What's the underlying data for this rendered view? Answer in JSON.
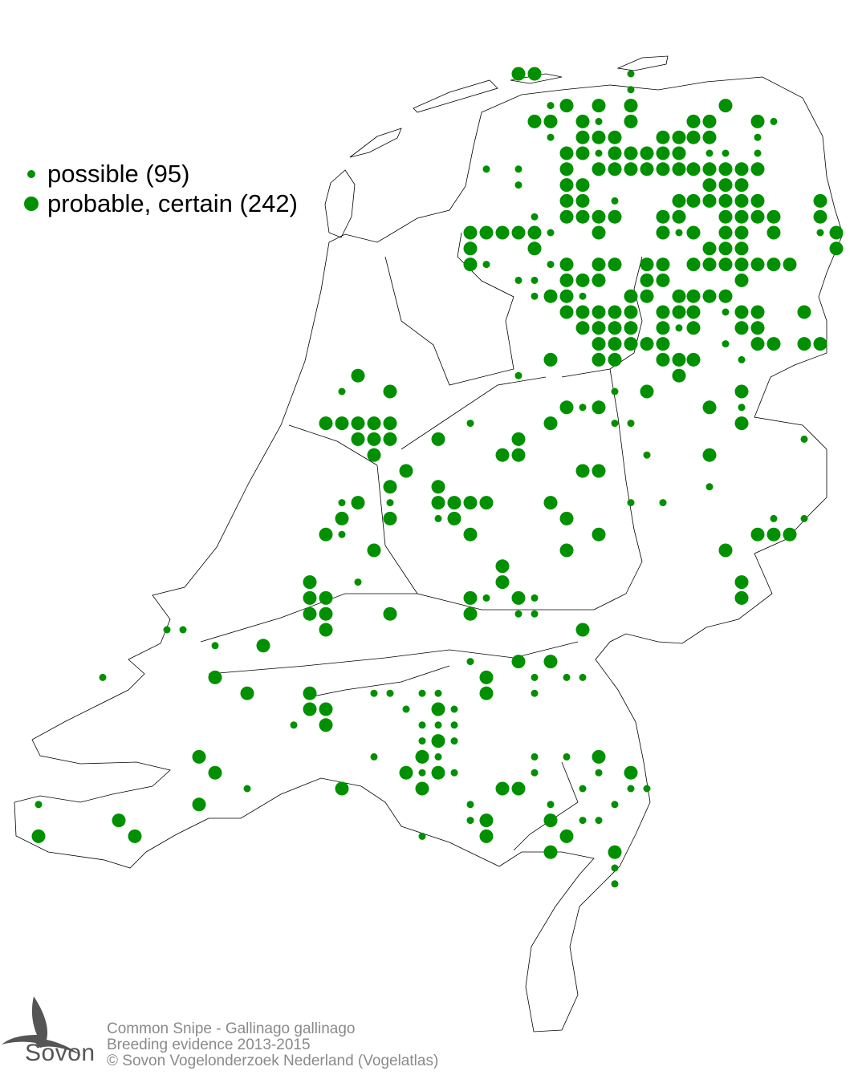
{
  "legend": {
    "items": [
      {
        "label": "possible (95)",
        "category": "possible",
        "count": 95
      },
      {
        "label": "probable, certain (242)",
        "category": "probable-certain",
        "count": 242
      }
    ]
  },
  "footer": {
    "line1": "Common Snipe - Gallinago gallinago",
    "line2": "Breeding evidence 2013-2015",
    "line3": "© Sovon Vogelonderzoek Nederland (Vogelatlas)"
  },
  "logo": {
    "text": "Sovon"
  },
  "colors": {
    "dot": "#009000",
    "outline": "#000000",
    "footer_text": "#8a8a8a"
  }
}
